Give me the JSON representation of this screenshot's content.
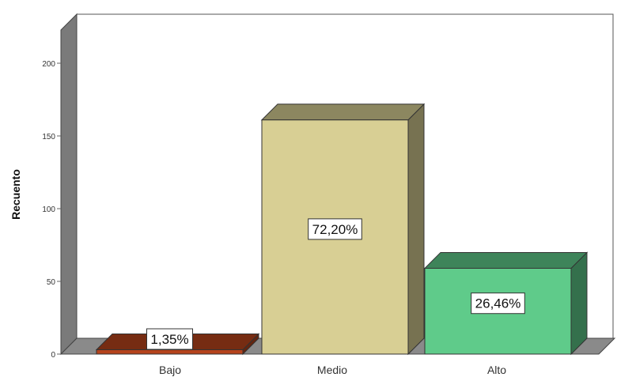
{
  "chart_data": {
    "type": "bar",
    "title": "",
    "xlabel": "",
    "ylabel": "Recuento",
    "ylim": [
      0,
      220
    ],
    "yticks": [
      0,
      50,
      100,
      150,
      200
    ],
    "categories": [
      "Bajo",
      "Medio",
      "Alto"
    ],
    "values": [
      3,
      161,
      59
    ],
    "data_labels": [
      "1,35%",
      "72,20%",
      "26,46%"
    ],
    "colors": [
      "#b5431c",
      "#d8cf94",
      "#5fcb8a"
    ],
    "grid": false,
    "style": "3d"
  }
}
